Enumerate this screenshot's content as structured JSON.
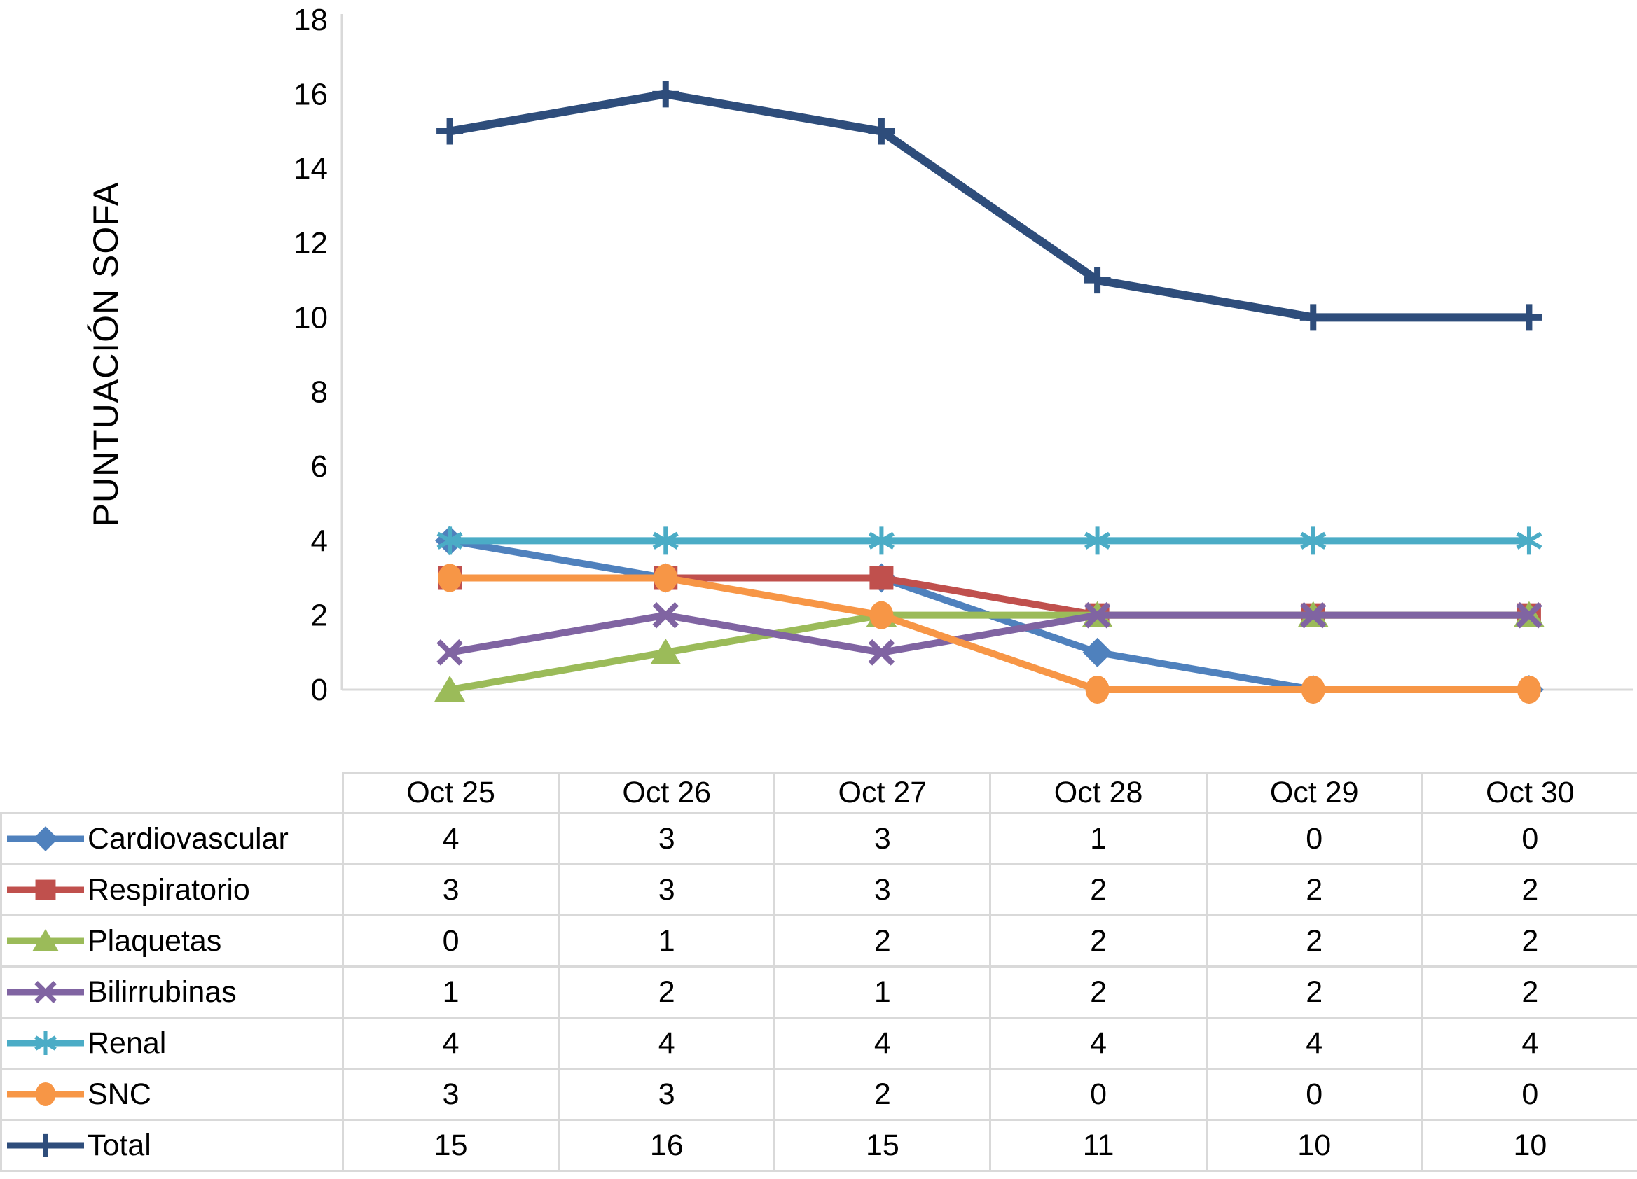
{
  "chart_data": {
    "type": "line",
    "title": "",
    "xlabel": "",
    "ylabel": "PUNTUACIÓN SOFA",
    "categories": [
      "Oct 25",
      "Oct 26",
      "Oct 27",
      "Oct 28",
      "Oct 29",
      "Oct 30"
    ],
    "ylim": [
      0,
      18
    ],
    "yticks": [
      0,
      2,
      4,
      6,
      8,
      10,
      12,
      14,
      16,
      18
    ],
    "grid": false,
    "legend_position": "table-row-headers",
    "series": [
      {
        "name": "Cardiovascular",
        "marker": "diamond",
        "color": "#4F81BD",
        "values": [
          4,
          3,
          3,
          1,
          0,
          0
        ]
      },
      {
        "name": "Respiratorio",
        "marker": "square",
        "color": "#C0504D",
        "values": [
          3,
          3,
          3,
          2,
          2,
          2
        ]
      },
      {
        "name": "Plaquetas",
        "marker": "triangle",
        "color": "#9BBB59",
        "values": [
          0,
          1,
          2,
          2,
          2,
          2
        ]
      },
      {
        "name": "Bilirrubinas",
        "marker": "x-cross",
        "color": "#8064A2",
        "values": [
          1,
          2,
          1,
          2,
          2,
          2
        ]
      },
      {
        "name": "Renal",
        "marker": "asterisk",
        "color": "#4BACC6",
        "values": [
          4,
          4,
          4,
          4,
          4,
          4
        ]
      },
      {
        "name": "SNC",
        "marker": "circle",
        "color": "#F79646",
        "values": [
          3,
          3,
          2,
          0,
          0,
          0
        ]
      },
      {
        "name": "Total",
        "marker": "plus",
        "color": "#2E4D7B",
        "values": [
          15,
          16,
          15,
          11,
          10,
          10
        ],
        "line_width": 12
      }
    ]
  },
  "colors": {
    "axis_line": "#D9D9D9",
    "table_border": "#D9D9D9",
    "text": "#000000",
    "background": "#FFFFFF"
  }
}
